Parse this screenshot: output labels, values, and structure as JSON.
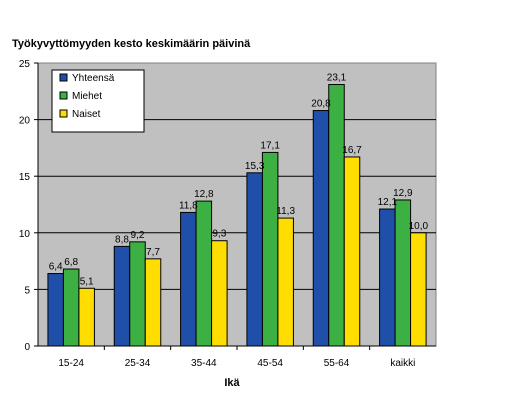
{
  "chart_data": {
    "type": "bar",
    "title": "Työkyvyttömyyden kesto keskimäärin päivinä",
    "xlabel": "Ikä",
    "ylabel": "",
    "ylim": [
      0,
      25
    ],
    "yticks": [
      0,
      5,
      10,
      15,
      20,
      25
    ],
    "grid": true,
    "legend_position": "top-left",
    "categories": [
      "15-24",
      "25-34",
      "35-44",
      "45-54",
      "55-64",
      "kaikki"
    ],
    "series": [
      {
        "name": "Yhteensä",
        "color": "#1f4fa8",
        "values": [
          6.4,
          8.8,
          11.8,
          15.3,
          20.8,
          12.1
        ],
        "labels": [
          "6,4",
          "8,8",
          "11,8",
          "15,3",
          "20,8",
          "12,1"
        ]
      },
      {
        "name": "Miehet",
        "color": "#3cb043",
        "values": [
          6.8,
          9.2,
          12.8,
          17.1,
          23.1,
          12.9
        ],
        "labels": [
          "6,8",
          "9,2",
          "12,8",
          "17,1",
          "23,1",
          "12,9"
        ]
      },
      {
        "name": "Naiset",
        "color": "#ffdd00",
        "values": [
          5.1,
          7.7,
          9.3,
          11.3,
          16.7,
          10.0
        ],
        "labels": [
          "5,1",
          "7,7",
          "9,3",
          "11,3",
          "16,7",
          "10,0"
        ]
      }
    ]
  }
}
